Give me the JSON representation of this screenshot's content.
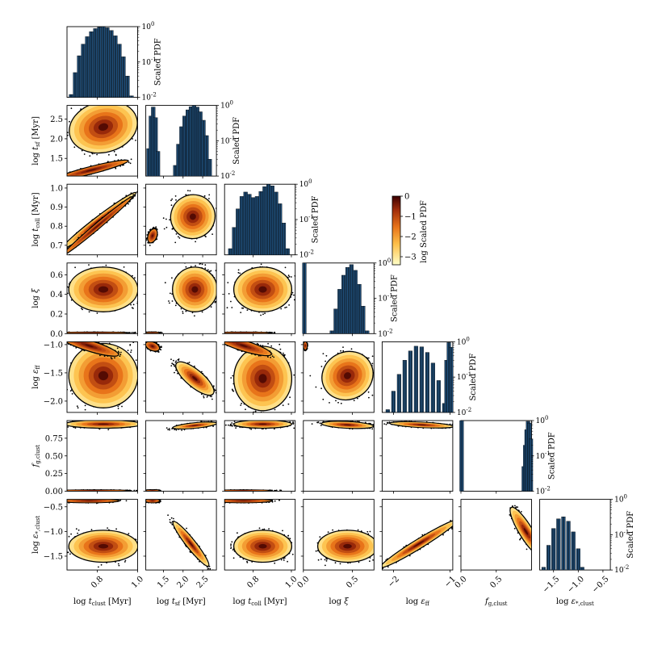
{
  "chart_data": {
    "type": "corner",
    "title": "",
    "parameters": [
      {
        "key": "tclust",
        "label": "log t_clust [Myr]",
        "sym": "t",
        "sub": "clust",
        "unit": "[Myr]",
        "range": [
          0.65,
          1.0
        ],
        "ticks": [
          0.8,
          1.0
        ],
        "tick_labels": [
          "0.8",
          "1.0"
        ]
      },
      {
        "key": "tsf",
        "label": "log t_sf [Myr]",
        "sym": "t",
        "sub": "sf",
        "unit": "[Myr]",
        "range": [
          1.05,
          2.85
        ],
        "ticks": [
          1.5,
          2.0,
          2.5
        ],
        "tick_labels": [
          "1.5",
          "2.0",
          "2.5"
        ]
      },
      {
        "key": "tcoll",
        "label": "log t_coll [Myr]",
        "sym": "t",
        "sub": "coll",
        "unit": "[Myr]",
        "range": [
          0.65,
          1.02
        ],
        "ticks": [
          0.7,
          0.8,
          0.9,
          1.0
        ],
        "tick_labels": [
          "0.7",
          "0.8",
          "0.9",
          "1.0"
        ]
      },
      {
        "key": "xi",
        "label": "log ξ",
        "sym": "ξ",
        "sub": "",
        "unit": "",
        "range": [
          0.0,
          0.72
        ],
        "ticks": [
          0.0,
          0.2,
          0.4,
          0.6
        ],
        "tick_labels": [
          "0.0",
          "0.2",
          "0.4",
          "0.6"
        ]
      },
      {
        "key": "eff",
        "label": "log ε_ff",
        "sym": "ε",
        "sub": "ff",
        "unit": "",
        "range": [
          -2.2,
          -0.95
        ],
        "ticks": [
          -2.0,
          -1.5,
          -1.0
        ],
        "tick_labels": [
          "−2.0",
          "−1.5",
          "−1.0"
        ]
      },
      {
        "key": "fg",
        "label": "f_g,clust",
        "sym": "f",
        "sub": "g,clust",
        "unit": "",
        "range": [
          0.0,
          1.0
        ],
        "ticks": [
          0.0,
          0.25,
          0.5,
          0.75
        ],
        "tick_labels": [
          "0.00",
          "0.25",
          "0.50",
          "0.75"
        ]
      },
      {
        "key": "estar",
        "label": "log ε_*,clust",
        "sym": "ε",
        "sub": "*,clust",
        "unit": "",
        "range": [
          -1.78,
          -0.35
        ],
        "ticks": [
          -1.5,
          -1.0,
          -0.5
        ],
        "tick_labels": [
          "−1.5",
          "−1.0",
          "−0.5"
        ]
      }
    ],
    "x_tick_labels": [
      [
        "0.8",
        "1.0"
      ],
      [
        "1.5",
        "2.0",
        "2.5"
      ],
      [
        "0.8",
        "1.0"
      ],
      [
        "0.0",
        "0.5"
      ],
      [
        "−2",
        "−1"
      ],
      [
        "0.0",
        "0.5"
      ],
      [
        "−1.5",
        "−1.0",
        "−0.5"
      ]
    ],
    "x_tick_values": [
      [
        0.8,
        1.0
      ],
      [
        1.5,
        2.0,
        2.5
      ],
      [
        0.8,
        1.0
      ],
      [
        0.0,
        0.5
      ],
      [
        -2,
        -1
      ],
      [
        0.0,
        0.5
      ],
      [
        -1.5,
        -1.0,
        -0.5
      ]
    ],
    "x_tick_extra_note": "",
    "histogram_axis": {
      "label": "Scaled PDF",
      "scale": "log",
      "range": [
        0.01,
        1.0
      ],
      "ticks": [
        1.0,
        0.1,
        0.01
      ],
      "tick_labels": [
        "10^0",
        "10^-1",
        "10^-2"
      ]
    },
    "colorbar": {
      "label": "log Scaled PDF",
      "range": [
        -3.4,
        0
      ],
      "ticks": [
        0,
        -1,
        -2,
        -3
      ],
      "tick_labels": [
        "0",
        "−1",
        "−2",
        "−3"
      ],
      "colormap": "afmhot_r"
    },
    "histograms": [
      {
        "param": "tclust",
        "bins": [
          [
            0.67,
            0.012
          ],
          [
            0.69,
            0.05
          ],
          [
            0.71,
            0.15
          ],
          [
            0.73,
            0.32
          ],
          [
            0.75,
            0.52
          ],
          [
            0.77,
            0.72
          ],
          [
            0.79,
            0.88
          ],
          [
            0.81,
            0.97
          ],
          [
            0.83,
            1.0
          ],
          [
            0.85,
            0.93
          ],
          [
            0.87,
            0.78
          ],
          [
            0.89,
            0.55
          ],
          [
            0.91,
            0.32
          ],
          [
            0.93,
            0.14
          ],
          [
            0.95,
            0.04
          ],
          [
            0.97,
            0.011
          ]
        ]
      },
      {
        "param": "tsf",
        "bins": [
          [
            1.12,
            0.06
          ],
          [
            1.18,
            0.5
          ],
          [
            1.24,
            0.9
          ],
          [
            1.3,
            0.45
          ],
          [
            1.36,
            0.05
          ],
          [
            1.8,
            0.02
          ],
          [
            1.88,
            0.08
          ],
          [
            1.96,
            0.25
          ],
          [
            2.04,
            0.5
          ],
          [
            2.12,
            0.75
          ],
          [
            2.2,
            0.92
          ],
          [
            2.28,
            1.0
          ],
          [
            2.36,
            0.9
          ],
          [
            2.44,
            0.66
          ],
          [
            2.52,
            0.38
          ],
          [
            2.6,
            0.14
          ],
          [
            2.68,
            0.03
          ]
        ]
      },
      {
        "param": "tcoll",
        "bins": [
          [
            0.68,
            0.015
          ],
          [
            0.7,
            0.06
          ],
          [
            0.72,
            0.2
          ],
          [
            0.74,
            0.45
          ],
          [
            0.76,
            0.6
          ],
          [
            0.78,
            0.52
          ],
          [
            0.8,
            0.42
          ],
          [
            0.82,
            0.45
          ],
          [
            0.84,
            0.62
          ],
          [
            0.86,
            0.85
          ],
          [
            0.88,
            1.0
          ],
          [
            0.9,
            0.9
          ],
          [
            0.92,
            0.6
          ],
          [
            0.94,
            0.28
          ],
          [
            0.96,
            0.08
          ],
          [
            0.98,
            0.015
          ]
        ]
      },
      {
        "param": "xi",
        "bins": [
          [
            0.01,
            1.0
          ],
          [
            0.29,
            0.012
          ],
          [
            0.33,
            0.05
          ],
          [
            0.37,
            0.18
          ],
          [
            0.41,
            0.45
          ],
          [
            0.45,
            0.75
          ],
          [
            0.49,
            0.9
          ],
          [
            0.53,
            0.62
          ],
          [
            0.57,
            0.25
          ],
          [
            0.61,
            0.06
          ],
          [
            0.65,
            0.012
          ]
        ]
      },
      {
        "param": "eff",
        "bins": [
          [
            -2.1,
            0.012
          ],
          [
            -2.0,
            0.04
          ],
          [
            -1.9,
            0.12
          ],
          [
            -1.8,
            0.3
          ],
          [
            -1.7,
            0.55
          ],
          [
            -1.6,
            0.75
          ],
          [
            -1.5,
            0.72
          ],
          [
            -1.4,
            0.5
          ],
          [
            -1.3,
            0.25
          ],
          [
            -1.2,
            0.08
          ],
          [
            -1.1,
            0.018
          ],
          [
            -1.06,
            0.3
          ],
          [
            -1.02,
            0.95
          ],
          [
            -0.98,
            0.7
          ]
        ]
      },
      {
        "param": "fg",
        "bins": [
          [
            0.01,
            1.0
          ],
          [
            0.87,
            0.01
          ],
          [
            0.89,
            0.05
          ],
          [
            0.91,
            0.2
          ],
          [
            0.93,
            0.55
          ],
          [
            0.95,
            0.95
          ],
          [
            0.97,
            0.85
          ],
          [
            0.99,
            0.3
          ]
        ]
      },
      {
        "param": "estar",
        "bins": [
          [
            -1.7,
            0.012
          ],
          [
            -1.6,
            0.05
          ],
          [
            -1.5,
            0.15
          ],
          [
            -1.4,
            0.28
          ],
          [
            -1.3,
            0.32
          ],
          [
            -1.2,
            0.24
          ],
          [
            -1.1,
            0.12
          ],
          [
            -1.0,
            0.04
          ],
          [
            -0.92,
            0.012
          ]
        ]
      }
    ],
    "pairs": [
      {
        "row": "tsf",
        "col": "tclust",
        "blobs": [
          {
            "mx": 0.83,
            "my": 2.3,
            "sx": 0.09,
            "sy": 0.34,
            "rot": 0.25
          },
          {
            "mx": 0.77,
            "my": 1.2,
            "sx": 0.1,
            "sy": 0.05,
            "rot": 0.25
          }
        ]
      },
      {
        "row": "tcoll",
        "col": "tclust",
        "blobs": [
          {
            "mx": 0.81,
            "my": 0.83,
            "sx": 0.12,
            "sy": 0.012,
            "rot": 0.65
          },
          {
            "mx": 0.8,
            "my": 0.8,
            "sx": 0.12,
            "sy": 0.008,
            "rot": 0.7
          }
        ]
      },
      {
        "row": "tcoll",
        "col": "tsf",
        "blobs": [
          {
            "mx": 2.25,
            "my": 0.85,
            "sx": 0.3,
            "sy": 0.06,
            "rot": 0.55
          },
          {
            "mx": 1.22,
            "my": 0.75,
            "sx": 0.1,
            "sy": 0.012,
            "rot": 1.2
          }
        ]
      },
      {
        "row": "xi",
        "col": "tclust",
        "blobs": [
          {
            "mx": 0.83,
            "my": 0.45,
            "sx": 0.09,
            "sy": 0.12,
            "rot": 0.0
          },
          {
            "mx": 0.78,
            "my": 0.01,
            "sx": 0.1,
            "sy": 0.003,
            "rot": 0.0
          }
        ]
      },
      {
        "row": "xi",
        "col": "tsf",
        "blobs": [
          {
            "mx": 2.3,
            "my": 0.45,
            "sx": 0.3,
            "sy": 0.12,
            "rot": 0.0
          },
          {
            "mx": 1.22,
            "my": 0.01,
            "sx": 0.1,
            "sy": 0.003,
            "rot": 0.0
          }
        ]
      },
      {
        "row": "xi",
        "col": "tcoll",
        "blobs": [
          {
            "mx": 0.85,
            "my": 0.45,
            "sx": 0.08,
            "sy": 0.12,
            "rot": 0.0
          },
          {
            "mx": 0.75,
            "my": 0.01,
            "sx": 0.08,
            "sy": 0.003,
            "rot": 0.0
          }
        ]
      },
      {
        "row": "eff",
        "col": "tclust",
        "blobs": [
          {
            "mx": 0.83,
            "my": -1.55,
            "sx": 0.09,
            "sy": 0.3,
            "rot": 0.0
          },
          {
            "mx": 0.76,
            "my": -1.02,
            "sx": 0.08,
            "sy": 0.05,
            "rot": -0.3
          }
        ]
      },
      {
        "row": "eff",
        "col": "tsf",
        "blobs": [
          {
            "mx": 2.3,
            "my": -1.6,
            "sx": 0.32,
            "sy": 0.08,
            "rot": -0.7
          },
          {
            "mx": 1.22,
            "my": -1.03,
            "sx": 0.1,
            "sy": 0.04,
            "rot": -0.4
          }
        ]
      },
      {
        "row": "eff",
        "col": "tcoll",
        "blobs": [
          {
            "mx": 0.85,
            "my": -1.6,
            "sx": 0.08,
            "sy": 0.3,
            "rot": 0.0
          },
          {
            "mx": 0.75,
            "my": -1.02,
            "sx": 0.08,
            "sy": 0.05,
            "rot": -0.3
          }
        ]
      },
      {
        "row": "eff",
        "col": "xi",
        "blobs": [
          {
            "mx": 0.45,
            "my": -1.55,
            "sx": 0.14,
            "sy": 0.22,
            "rot": 0.5
          },
          {
            "mx": 0.02,
            "my": -1.02,
            "sx": 0.01,
            "sy": 0.04,
            "rot": 0.0
          }
        ]
      },
      {
        "row": "fg",
        "col": "tclust",
        "blobs": [
          {
            "mx": 0.83,
            "my": 0.95,
            "sx": 0.1,
            "sy": 0.03,
            "rot": 0.0
          },
          {
            "mx": 0.78,
            "my": 0.01,
            "sx": 0.1,
            "sy": 0.004,
            "rot": 0.0
          }
        ]
      },
      {
        "row": "fg",
        "col": "tsf",
        "blobs": [
          {
            "mx": 2.3,
            "my": 0.93,
            "sx": 0.3,
            "sy": 0.02,
            "rot": 0.1
          },
          {
            "mx": 1.22,
            "my": 0.01,
            "sx": 0.1,
            "sy": 0.004,
            "rot": 0.0
          }
        ]
      },
      {
        "row": "fg",
        "col": "tcoll",
        "blobs": [
          {
            "mx": 0.85,
            "my": 0.95,
            "sx": 0.08,
            "sy": 0.03,
            "rot": 0.0
          },
          {
            "mx": 0.75,
            "my": 0.01,
            "sx": 0.08,
            "sy": 0.004,
            "rot": 0.0
          }
        ]
      },
      {
        "row": "fg",
        "col": "xi",
        "blobs": [
          {
            "mx": 0.45,
            "my": 0.94,
            "sx": 0.14,
            "sy": 0.025,
            "rot": -0.05
          }
        ]
      },
      {
        "row": "fg",
        "col": "eff",
        "blobs": [
          {
            "mx": -1.5,
            "my": 0.94,
            "sx": 0.3,
            "sy": 0.02,
            "rot": -0.05
          }
        ]
      },
      {
        "row": "estar",
        "col": "tclust",
        "blobs": [
          {
            "mx": 0.83,
            "my": -1.3,
            "sx": 0.09,
            "sy": 0.17,
            "rot": 0.0
          },
          {
            "mx": 0.76,
            "my": -0.38,
            "sx": 0.08,
            "sy": 0.02,
            "rot": 0.0
          }
        ]
      },
      {
        "row": "estar",
        "col": "tsf",
        "blobs": [
          {
            "mx": 2.2,
            "my": -1.25,
            "sx": 0.38,
            "sy": 0.05,
            "rot": -0.9
          },
          {
            "mx": 1.22,
            "my": -0.38,
            "sx": 0.1,
            "sy": 0.02,
            "rot": 0.0
          }
        ]
      },
      {
        "row": "estar",
        "col": "tcoll",
        "blobs": [
          {
            "mx": 0.85,
            "my": -1.3,
            "sx": 0.08,
            "sy": 0.17,
            "rot": 0.0
          },
          {
            "mx": 0.75,
            "my": -0.38,
            "sx": 0.08,
            "sy": 0.02,
            "rot": 0.0
          }
        ]
      },
      {
        "row": "estar",
        "col": "xi",
        "blobs": [
          {
            "mx": 0.45,
            "my": -1.3,
            "sx": 0.16,
            "sy": 0.17,
            "rot": 0.0
          }
        ]
      },
      {
        "row": "estar",
        "col": "eff",
        "blobs": [
          {
            "mx": -1.55,
            "my": -1.25,
            "sx": 0.42,
            "sy": 0.05,
            "rot": 0.55
          }
        ]
      },
      {
        "row": "estar",
        "col": "fg",
        "blobs": [
          {
            "mx": 0.92,
            "my": -1.0,
            "sx": 0.05,
            "sy": 0.3,
            "rot": 0.55
          }
        ]
      }
    ]
  }
}
